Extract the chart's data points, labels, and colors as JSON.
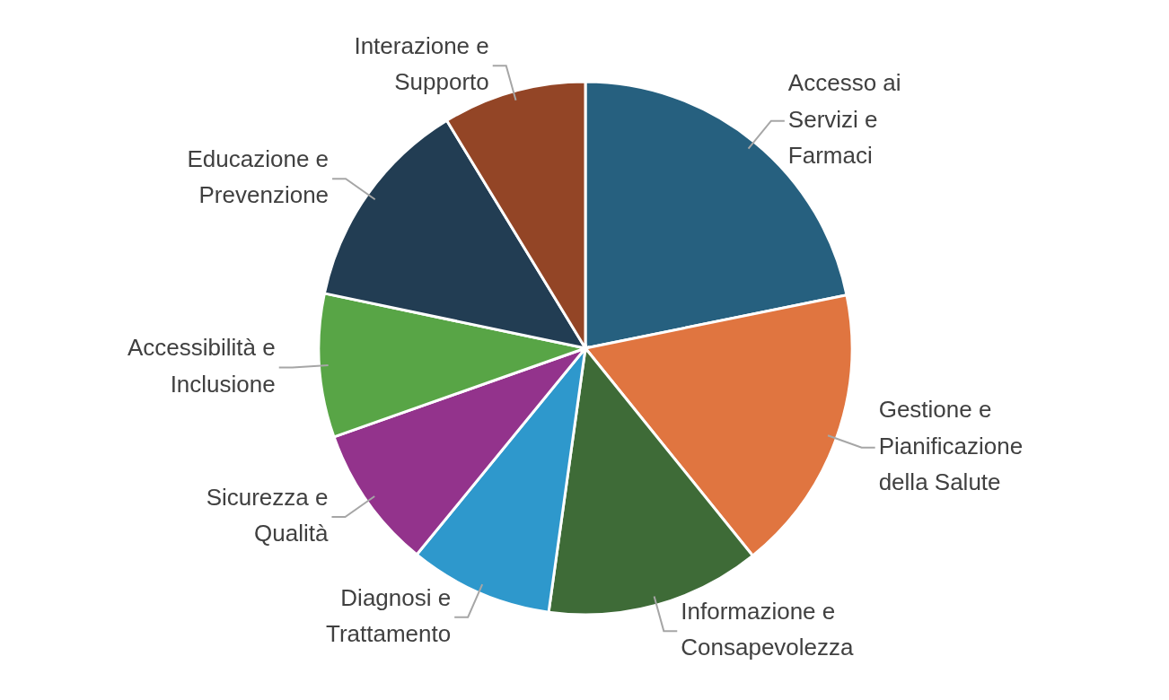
{
  "chart_data": {
    "type": "pie",
    "categories": [
      "Accesso ai Servizi e Farmaci",
      "Gestione e Pianificazione della Salute",
      "Informazione e Consapevolezza",
      "Diagnosi e Trattamento",
      "Sicurezza e Qualità",
      "Accessibilità e Inclusione",
      "Educazione e Prevenzione",
      "Interazione e Supporto"
    ],
    "values": [
      21.8,
      17.4,
      13,
      8.7,
      8.7,
      8.7,
      13,
      8.7
    ],
    "colors": [
      "#26607f",
      "#e07540",
      "#3e6b37",
      "#2e98cc",
      "#93338c",
      "#58a546",
      "#223d53",
      "#934526"
    ]
  }
}
